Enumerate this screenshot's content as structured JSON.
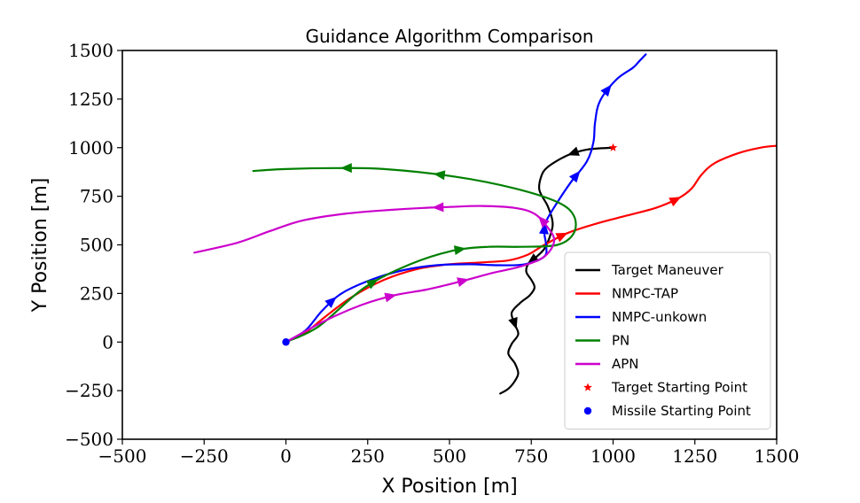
{
  "chart_data": {
    "type": "line",
    "title": "Guidance Algorithm Comparison",
    "xlabel": "X Position [m]",
    "ylabel": "Y Position [m]",
    "xlim": [
      -500,
      1500
    ],
    "ylim": [
      -500,
      1500
    ],
    "xticks": [
      -500,
      -250,
      0,
      250,
      500,
      750,
      1000,
      1250,
      1500
    ],
    "yticks": [
      -500,
      -250,
      0,
      250,
      500,
      750,
      1000,
      1250,
      1500
    ],
    "xtick_labels": [
      "−500",
      "−250",
      "0",
      "250",
      "500",
      "750",
      "1000",
      "1250",
      "1500"
    ],
    "ytick_labels": [
      "−500",
      "−250",
      "0",
      "250",
      "500",
      "750",
      "1000",
      "1250",
      "1500"
    ],
    "grid": false,
    "legend_position": "lower-right",
    "series": [
      {
        "name": "Target Maneuver",
        "color": "#000000",
        "points": [
          [
            1000,
            1000
          ],
          [
            920,
            990
          ],
          [
            860,
            960
          ],
          [
            800,
            900
          ],
          [
            780,
            850
          ],
          [
            775,
            780
          ],
          [
            800,
            700
          ],
          [
            815,
            620
          ],
          [
            810,
            560
          ],
          [
            790,
            480
          ],
          [
            760,
            430
          ],
          [
            740,
            400
          ],
          [
            735,
            360
          ],
          [
            750,
            320
          ],
          [
            760,
            280
          ],
          [
            745,
            240
          ],
          [
            715,
            200
          ],
          [
            690,
            150
          ],
          [
            700,
            90
          ],
          [
            710,
            40
          ],
          [
            690,
            -10
          ],
          [
            680,
            -60
          ],
          [
            700,
            -110
          ],
          [
            710,
            -160
          ],
          [
            700,
            -200
          ],
          [
            680,
            -240
          ],
          [
            655,
            -265
          ]
        ],
        "arrows_at": [
          0.12,
          0.52,
          0.75
        ]
      },
      {
        "name": "NMPC-TAP",
        "color": "#ff0000",
        "points": [
          [
            0,
            0
          ],
          [
            60,
            50
          ],
          [
            120,
            130
          ],
          [
            200,
            230
          ],
          [
            300,
            320
          ],
          [
            400,
            375
          ],
          [
            500,
            400
          ],
          [
            600,
            410
          ],
          [
            680,
            420
          ],
          [
            740,
            450
          ],
          [
            790,
            500
          ],
          [
            860,
            560
          ],
          [
            950,
            610
          ],
          [
            1040,
            650
          ],
          [
            1130,
            690
          ],
          [
            1200,
            740
          ],
          [
            1240,
            790
          ],
          [
            1270,
            860
          ],
          [
            1310,
            920
          ],
          [
            1380,
            970
          ],
          [
            1450,
            1000
          ],
          [
            1500,
            1010
          ]
        ],
        "arrows_at": [
          0.56,
          0.78
        ]
      },
      {
        "name": "NMPC-unkown",
        "color": "#0000ff",
        "points": [
          [
            0,
            0
          ],
          [
            60,
            60
          ],
          [
            110,
            160
          ],
          [
            170,
            250
          ],
          [
            260,
            320
          ],
          [
            360,
            370
          ],
          [
            460,
            395
          ],
          [
            560,
            400
          ],
          [
            650,
            395
          ],
          [
            730,
            400
          ],
          [
            790,
            440
          ],
          [
            795,
            500
          ],
          [
            790,
            560
          ],
          [
            795,
            620
          ],
          [
            830,
            720
          ],
          [
            870,
            820
          ],
          [
            920,
            930
          ],
          [
            940,
            1030
          ],
          [
            945,
            1130
          ],
          [
            960,
            1240
          ],
          [
            1010,
            1350
          ],
          [
            1060,
            1410
          ],
          [
            1080,
            1445
          ],
          [
            1100,
            1480
          ]
        ],
        "arrows_at": [
          0.12,
          0.6,
          0.72,
          0.9
        ]
      },
      {
        "name": "PN",
        "color": "#008000",
        "points": [
          [
            0,
            0
          ],
          [
            100,
            80
          ],
          [
            240,
            280
          ],
          [
            380,
            400
          ],
          [
            510,
            470
          ],
          [
            620,
            490
          ],
          [
            720,
            490
          ],
          [
            830,
            500
          ],
          [
            880,
            560
          ],
          [
            880,
            650
          ],
          [
            830,
            720
          ],
          [
            700,
            790
          ],
          [
            520,
            850
          ],
          [
            300,
            890
          ],
          [
            150,
            895
          ],
          [
            0,
            890
          ],
          [
            -100,
            880
          ]
        ],
        "arrows_at": [
          0.16,
          0.3,
          0.72,
          0.86
        ]
      },
      {
        "name": "APN",
        "color": "#cc00cc",
        "points": [
          [
            0,
            0
          ],
          [
            120,
            110
          ],
          [
            230,
            190
          ],
          [
            330,
            240
          ],
          [
            430,
            270
          ],
          [
            530,
            310
          ],
          [
            630,
            355
          ],
          [
            720,
            390
          ],
          [
            790,
            440
          ],
          [
            820,
            520
          ],
          [
            800,
            590
          ],
          [
            760,
            660
          ],
          [
            700,
            690
          ],
          [
            600,
            700
          ],
          [
            500,
            695
          ],
          [
            420,
            690
          ],
          [
            320,
            680
          ],
          [
            180,
            660
          ],
          [
            50,
            625
          ],
          [
            -50,
            570
          ],
          [
            -150,
            510
          ],
          [
            -280,
            460
          ]
        ],
        "arrows_at": [
          0.17,
          0.28,
          0.47,
          0.63
        ]
      }
    ],
    "markers": [
      {
        "name": "Target Starting Point",
        "type": "star",
        "color": "#ff0000",
        "x": 1000,
        "y": 1000
      },
      {
        "name": "Missile Starting Point",
        "type": "circle",
        "color": "#0000ff",
        "x": 0,
        "y": 0
      }
    ]
  }
}
